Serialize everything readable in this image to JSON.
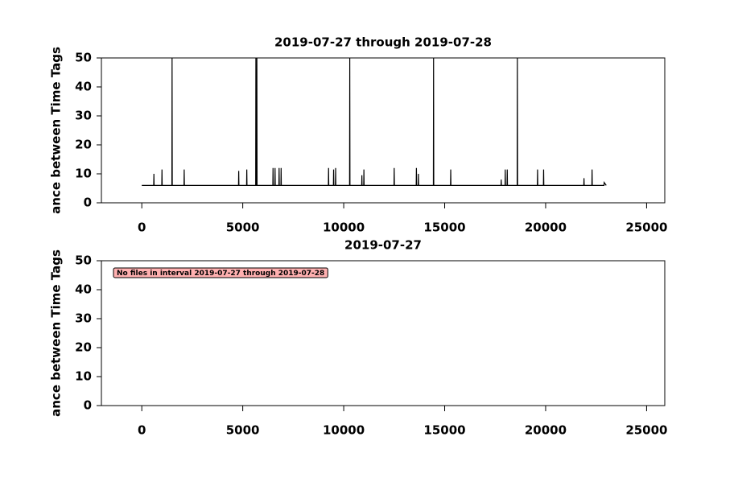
{
  "chart_data": [
    {
      "type": "line",
      "title": "2019-07-27 through 2019-07-28",
      "y_label": "ance between Time Tags",
      "xlim": [
        -2000,
        25900
      ],
      "xticks": [
        0,
        5000,
        10000,
        15000,
        20000,
        25000
      ],
      "ylim": [
        0,
        50
      ],
      "yticks": [
        0,
        10,
        20,
        30,
        40,
        50
      ],
      "series": [
        {
          "color": "#000000",
          "x": [
            0,
            590,
            600,
            610,
            990,
            1000,
            1010,
            1490,
            1500,
            1510,
            2090,
            2100,
            2110,
            4790,
            4800,
            4810,
            5190,
            5200,
            5210,
            5640,
            5650,
            5660,
            5690,
            5700,
            5710,
            6490,
            6500,
            6510,
            6590,
            6600,
            6610,
            6790,
            6800,
            6810,
            6890,
            6900,
            6910,
            9240,
            9250,
            9260,
            9490,
            9500,
            9510,
            9590,
            9600,
            9610,
            10290,
            10300,
            10310,
            10890,
            10900,
            10910,
            10990,
            11000,
            11010,
            12490,
            12500,
            12510,
            13590,
            13600,
            13610,
            13690,
            13700,
            13710,
            14440,
            14450,
            14460,
            15290,
            15300,
            15310,
            17790,
            17800,
            17810,
            17990,
            18000,
            18010,
            18090,
            18100,
            18110,
            18590,
            18600,
            18610,
            19590,
            19600,
            19610,
            19890,
            19900,
            19910,
            21890,
            21900,
            21910,
            22290,
            22300,
            22310,
            22890,
            22900,
            23000
          ],
          "values": [
            6,
            6,
            10,
            6,
            6,
            11.5,
            6,
            6,
            50,
            6,
            6,
            11.5,
            6,
            6,
            11,
            6,
            6,
            11.5,
            6,
            6,
            50,
            6,
            6,
            50,
            6,
            6,
            12,
            6,
            6,
            12,
            6,
            6,
            12,
            6,
            6,
            12,
            6,
            6,
            12,
            6,
            6,
            11.5,
            6,
            6,
            12,
            6,
            6,
            50,
            6,
            6,
            9.5,
            6,
            6,
            11.5,
            6,
            6,
            12,
            6,
            6,
            12,
            6,
            6,
            10,
            6,
            6,
            50,
            6,
            6,
            11.5,
            6,
            6,
            8,
            6,
            6,
            11.5,
            6,
            6,
            11.5,
            6,
            6,
            50,
            6,
            6,
            11.5,
            6,
            6,
            11.5,
            6,
            6,
            8.5,
            6,
            6,
            11.5,
            6,
            6,
            7,
            6
          ]
        }
      ]
    },
    {
      "type": "line",
      "title": "2019-07-27",
      "y_label": "ance between Time Tags",
      "xlim": [
        -2000,
        25900
      ],
      "xticks": [
        0,
        5000,
        10000,
        15000,
        20000,
        25000
      ],
      "ylim": [
        0,
        50
      ],
      "yticks": [
        0,
        10,
        20,
        30,
        40,
        50
      ],
      "annotation": "No files in interval 2019-07-27 through 2019-07-28",
      "series": []
    }
  ]
}
